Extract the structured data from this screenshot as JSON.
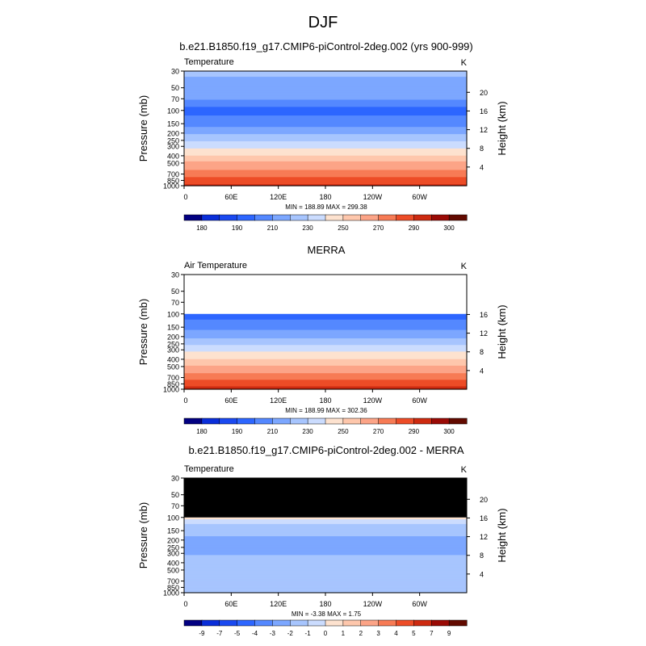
{
  "main_title": "DJF",
  "chart_data": [
    {
      "type": "heatmap",
      "title": "b.e21.B1850.f19_g17.CMIP6-piControl-2deg.002 (yrs 900-999)",
      "left_label": "Temperature",
      "units": "K",
      "ylabel": "Pressure (mb)",
      "ylabel_right": "Height (km)",
      "y_ticks": [
        "30",
        "50",
        "70",
        "100",
        "150",
        "200",
        "250",
        "300",
        "400",
        "500",
        "700",
        "850",
        "1000"
      ],
      "y_ticks_right": [
        "20",
        "16",
        "12",
        "8",
        "4"
      ],
      "x_ticks": [
        "0",
        "60E",
        "120E",
        "180",
        "120W",
        "60W"
      ],
      "stats": "MIN = 188.89   MAX = 299.38",
      "colorbar_ticks": [
        "180",
        "190",
        "210",
        "230",
        "250",
        "270",
        "290",
        "300"
      ],
      "levels": [
        {
          "p": 30,
          "v": 222
        },
        {
          "p": 70,
          "v": 212
        },
        {
          "p": 100,
          "v": 196
        },
        {
          "p": 150,
          "v": 206
        },
        {
          "p": 200,
          "v": 218
        },
        {
          "p": 250,
          "v": 228
        },
        {
          "p": 300,
          "v": 238
        },
        {
          "p": 400,
          "v": 250
        },
        {
          "p": 500,
          "v": 262
        },
        {
          "p": 700,
          "v": 276
        },
        {
          "p": 850,
          "v": 284
        },
        {
          "p": 1000,
          "v": 292
        }
      ],
      "topography": [
        [
          30,
          40,
          990
        ],
        [
          90,
          105,
          995
        ],
        [
          110,
          165,
          990
        ],
        [
          270,
          285,
          995
        ]
      ]
    },
    {
      "type": "heatmap",
      "title": "MERRA",
      "left_label": "Air Temperature",
      "units": "K",
      "ylabel": "Pressure (mb)",
      "ylabel_right": "Height (km)",
      "y_ticks": [
        "30",
        "50",
        "70",
        "100",
        "150",
        "200",
        "250",
        "300",
        "400",
        "500",
        "700",
        "850",
        "1000"
      ],
      "y_ticks_right": [
        "16",
        "12",
        "8",
        "4"
      ],
      "x_ticks": [
        "0",
        "60E",
        "120E",
        "180",
        "120W",
        "60W"
      ],
      "stats": "MIN = 188.99   MAX = 302.36",
      "colorbar_ticks": [
        "180",
        "190",
        "210",
        "230",
        "250",
        "270",
        "290",
        "300"
      ],
      "data_top_p": 100,
      "levels": [
        {
          "p": 100,
          "v": 196
        },
        {
          "p": 150,
          "v": 206
        },
        {
          "p": 200,
          "v": 218
        },
        {
          "p": 250,
          "v": 228
        },
        {
          "p": 300,
          "v": 238
        },
        {
          "p": 400,
          "v": 250
        },
        {
          "p": 500,
          "v": 262
        },
        {
          "p": 700,
          "v": 276
        },
        {
          "p": 850,
          "v": 286
        },
        {
          "p": 1000,
          "v": 294
        }
      ]
    },
    {
      "type": "heatmap",
      "title": "b.e21.B1850.f19_g17.CMIP6-piControl-2deg.002 - MERRA",
      "left_label": "Temperature",
      "units": "K",
      "ylabel": "Pressure (mb)",
      "ylabel_right": "Height (km)",
      "y_ticks": [
        "30",
        "50",
        "70",
        "100",
        "150",
        "200",
        "250",
        "300",
        "400",
        "500",
        "700",
        "850",
        "1000"
      ],
      "y_ticks_right": [
        "20",
        "16",
        "12",
        "8",
        "4"
      ],
      "x_ticks": [
        "0",
        "60E",
        "120E",
        "180",
        "120W",
        "60W"
      ],
      "stats": "MIN =  -3.38   MAX =   1.75",
      "colorbar_ticks": [
        "-9",
        "-7",
        "-5",
        "-4",
        "-3",
        "-2",
        "-1",
        "0",
        "1",
        "2",
        "3",
        "4",
        "5",
        "7",
        "9"
      ],
      "missing_above_p": 100,
      "levels": [
        {
          "p": 100,
          "v": 0.5
        },
        {
          "p": 130,
          "v": -1.5
        },
        {
          "p": 200,
          "v": -2.2
        },
        {
          "p": 270,
          "v": -2.6
        },
        {
          "p": 350,
          "v": -1.6
        },
        {
          "p": 450,
          "v": -1.8
        },
        {
          "p": 550,
          "v": -1.2
        },
        {
          "p": 700,
          "v": -1.0
        },
        {
          "p": 850,
          "v": -1.3
        },
        {
          "p": 1000,
          "v": -1.5
        }
      ],
      "topography": [
        [
          30,
          40,
          990
        ],
        [
          90,
          105,
          995
        ],
        [
          110,
          165,
          990
        ],
        [
          270,
          285,
          995
        ]
      ]
    }
  ],
  "colors": {
    "temp_colorbar": [
      "#020081",
      "#0a2ed9",
      "#1a49f0",
      "#2d66ff",
      "#5488ff",
      "#7ca7ff",
      "#a7c5fe",
      "#cbdcfe",
      "#fde2cf",
      "#fec7ac",
      "#fca487",
      "#f77b55",
      "#ed4c27",
      "#cd2a10",
      "#9a0a05",
      "#620a00"
    ],
    "diff_colorbar": [
      "#020081",
      "#0a2ed9",
      "#1a49f0",
      "#2d66ff",
      "#5488ff",
      "#7ca7ff",
      "#a7c5fe",
      "#cbdcfe",
      "#fde2cf",
      "#fec7ac",
      "#fca487",
      "#f77b55",
      "#ed4c27",
      "#cd2a10",
      "#9a0a05",
      "#620a00"
    ],
    "missing": "#000000",
    "topography": "#000000"
  }
}
